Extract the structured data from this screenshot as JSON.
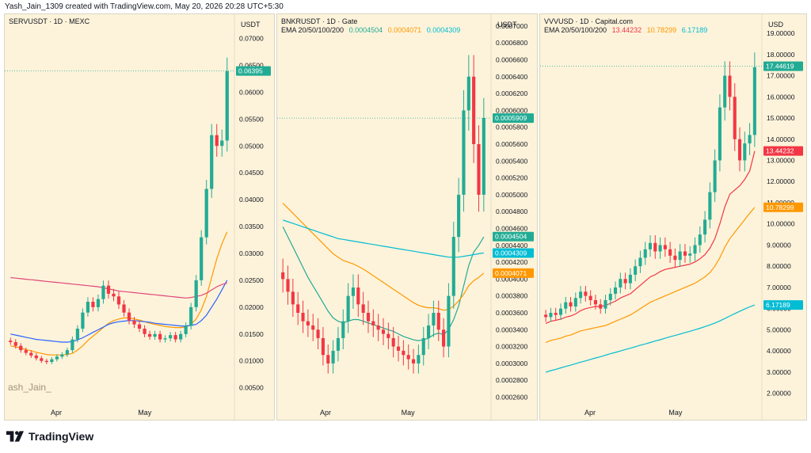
{
  "header": {
    "text": "Yash_Jain_1309 created with TradingView.com, May 20, 2026 20:28 UTC+5:30"
  },
  "footer": {
    "brand": "TradingView",
    "logo_icon": "tradingview-logo-icon"
  },
  "colors": {
    "background": "#fdf3da",
    "up": "#22ab94",
    "down": "#f23645",
    "ema20": "#f23645",
    "ema50": "#ff9800",
    "ema100": "#2962ff",
    "ema200": "#00bcd4",
    "text": "#131722"
  },
  "panels": [
    {
      "title": "SERVUSDT · 1D · MEXC",
      "ema_label": "",
      "currency": "USDT",
      "watermark": "ash_Jain_",
      "x_labels": [
        "Apr",
        "May"
      ],
      "chart_data": {
        "type": "candlestick",
        "ylim": [
          0.002,
          0.0745
        ],
        "y_ticks": [
          "0.07000",
          "0.06500",
          "0.06000",
          "0.05500",
          "0.05000",
          "0.04500",
          "0.04000",
          "0.03500",
          "0.03000",
          "0.02500",
          "0.02000",
          "0.01500",
          "0.01000",
          "0.00500"
        ],
        "price_labels": [
          {
            "text": "0.06395",
            "value": 0.06395,
            "color": "#22ab94"
          }
        ],
        "last_price": 0.06395,
        "close": [
          0.0135,
          0.0128,
          0.012,
          0.0115,
          0.011,
          0.0105,
          0.01,
          0.0098,
          0.0103,
          0.0108,
          0.0112,
          0.012,
          0.014,
          0.016,
          0.019,
          0.021,
          0.02,
          0.0215,
          0.024,
          0.0225,
          0.022,
          0.0205,
          0.019,
          0.0175,
          0.0168,
          0.016,
          0.015,
          0.0145,
          0.015,
          0.014,
          0.0142,
          0.0148,
          0.014,
          0.015,
          0.0165,
          0.02,
          0.025,
          0.033,
          0.042,
          0.052,
          0.05,
          0.051,
          0.0639
        ],
        "series": [
          {
            "name": "EMA 20",
            "color": "#ff9800",
            "values": [
              0.0128,
              0.0126,
              0.0124,
              0.0121,
              0.0119,
              0.0116,
              0.0114,
              0.0112,
              0.0111,
              0.0111,
              0.0111,
              0.0112,
              0.0114,
              0.012,
              0.0128,
              0.0138,
              0.0146,
              0.0154,
              0.0162,
              0.017,
              0.0175,
              0.0178,
              0.018,
              0.018,
              0.0178,
              0.0176,
              0.0173,
              0.017,
              0.0168,
              0.0166,
              0.0164,
              0.0163,
              0.0162,
              0.0162,
              0.0163,
              0.0168,
              0.0178,
              0.0195,
              0.022,
              0.0255,
              0.029,
              0.0318,
              0.034
            ]
          },
          {
            "name": "EMA 100",
            "color": "#2962ff",
            "values": [
              0.015,
              0.0148,
              0.0146,
              0.0144,
              0.0142,
              0.014,
              0.0139,
              0.0138,
              0.0137,
              0.0136,
              0.0135,
              0.0135,
              0.0136,
              0.0139,
              0.0143,
              0.0148,
              0.0153,
              0.0158,
              0.0163,
              0.0168,
              0.0171,
              0.0173,
              0.0174,
              0.0175,
              0.0175,
              0.0174,
              0.0173,
              0.0172,
              0.017,
              0.0169,
              0.0168,
              0.0167,
              0.0166,
              0.0165,
              0.0165,
              0.0166,
              0.0168,
              0.0175,
              0.0185,
              0.02,
              0.0215,
              0.0232,
              0.025
            ]
          },
          {
            "name": "EMA 200",
            "color": "#e0487a",
            "values": [
              0.0255,
              0.0254,
              0.0253,
              0.0252,
              0.0251,
              0.025,
              0.0249,
              0.0248,
              0.0247,
              0.0246,
              0.0245,
              0.0244,
              0.0243,
              0.0242,
              0.0241,
              0.024,
              0.0239,
              0.0238,
              0.0236,
              0.0234,
              0.0232,
              0.023,
              0.0229,
              0.0228,
              0.0227,
              0.0226,
              0.0225,
              0.0224,
              0.0223,
              0.0222,
              0.0221,
              0.022,
              0.0219,
              0.0218,
              0.0217,
              0.0218,
              0.022,
              0.0222,
              0.0226,
              0.0232,
              0.0238,
              0.0242,
              0.0245
            ]
          }
        ]
      }
    },
    {
      "title": "BNKRUSDT · 1D · Gate",
      "ema_label": "EMA 20/50/100/200",
      "ema_values": [
        {
          "text": "0.0004504",
          "color": "#22ab94"
        },
        {
          "text": "0.0004071",
          "color": "#ff9800"
        },
        {
          "text": "0.0004309",
          "color": "#00bcd4"
        }
      ],
      "currency": "USDT",
      "watermark": "",
      "x_labels": [
        "Apr",
        "May"
      ],
      "chart_data": {
        "type": "candlestick",
        "ylim": [
          0.000252,
          0.000714
        ],
        "y_ticks": [
          "0.0007000",
          "0.0006800",
          "0.0006600",
          "0.0006400",
          "0.0006200",
          "0.0006000",
          "0.0005800",
          "0.0005600",
          "0.0005400",
          "0.0005200",
          "0.0005000",
          "0.0004800",
          "0.0004600",
          "0.0004400",
          "0.0004200",
          "0.0004000",
          "0.0003800",
          "0.0003600",
          "0.0003400",
          "0.0003200",
          "0.0003000",
          "0.0002800",
          "0.0002600"
        ],
        "price_labels": [
          {
            "text": "0.0005909",
            "value": 0.0005909,
            "color": "#22ab94"
          },
          {
            "text": "0.0004504",
            "value": 0.0004504,
            "color": "#22ab94"
          },
          {
            "text": "0.0004309",
            "value": 0.0004309,
            "color": "#00bcd4"
          },
          {
            "text": "0.0004071",
            "value": 0.0004071,
            "color": "#ff9800"
          }
        ],
        "last_price": 0.0005909,
        "close": [
          0.0004,
          0.000385,
          0.00037,
          0.00036,
          0.00035,
          0.000345,
          0.00034,
          0.00033,
          0.00031,
          0.0003,
          0.000315,
          0.00033,
          0.00035,
          0.00038,
          0.00039,
          0.00037,
          0.00036,
          0.00035,
          0.000345,
          0.00034,
          0.000335,
          0.00033,
          0.00032,
          0.000315,
          0.00031,
          0.000305,
          0.0003,
          0.00031,
          0.00033,
          0.000345,
          0.00036,
          0.00034,
          0.00032,
          0.00038,
          0.00045,
          0.0005,
          0.0006,
          0.00064,
          0.00056,
          0.0005,
          0.000591
        ],
        "series": [
          {
            "name": "EMA 20",
            "color": "#22ab94",
            "values": [
              0.000462,
              0.00045,
              0.000438,
              0.000426,
              0.000414,
              0.000402,
              0.000392,
              0.000382,
              0.000372,
              0.000362,
              0.000354,
              0.00035,
              0.000348,
              0.00035,
              0.000352,
              0.000352,
              0.00035,
              0.000348,
              0.000346,
              0.000344,
              0.000342,
              0.00034,
              0.000338,
              0.000335,
              0.000332,
              0.00033,
              0.000328,
              0.000327,
              0.000328,
              0.00033,
              0.000334,
              0.000336,
              0.000334,
              0.00034,
              0.000352,
              0.000368,
              0.000392,
              0.000416,
              0.000432,
              0.00044,
              0.00045
            ]
          },
          {
            "name": "EMA 50",
            "color": "#ff9800",
            "values": [
              0.00049,
              0.000484,
              0.000478,
              0.000472,
              0.000466,
              0.00046,
              0.000454,
              0.000448,
              0.000442,
              0.000436,
              0.00043,
              0.000426,
              0.000422,
              0.00042,
              0.000418,
              0.000415,
              0.000412,
              0.000408,
              0.000404,
              0.0004,
              0.000396,
              0.000392,
              0.000388,
              0.000384,
              0.00038,
              0.000376,
              0.000372,
              0.000369,
              0.000367,
              0.000366,
              0.000366,
              0.000365,
              0.000363,
              0.000364,
              0.000368,
              0.000374,
              0.000382,
              0.000392,
              0.000398,
              0.000402,
              0.000407
            ]
          },
          {
            "name": "EMA 100",
            "color": "#00bcd4",
            "values": [
              0.00047,
              0.000468,
              0.000466,
              0.000464,
              0.000462,
              0.00046,
              0.000458,
              0.000456,
              0.000454,
              0.000452,
              0.00045,
              0.000448,
              0.000447,
              0.000446,
              0.000445,
              0.000444,
              0.000443,
              0.000442,
              0.000441,
              0.00044,
              0.000439,
              0.000438,
              0.000437,
              0.000436,
              0.000435,
              0.000434,
              0.000433,
              0.000432,
              0.000431,
              0.00043,
              0.000429,
              0.000428,
              0.000427,
              0.000426,
              0.000426,
              0.000426,
              0.000427,
              0.000428,
              0.000429,
              0.00043,
              0.000431
            ]
          }
        ]
      }
    },
    {
      "title": "VVVUSD · 1D · Capital.com",
      "ema_label": "EMA 20/50/100/200",
      "ema_values": [
        {
          "text": "13.44232",
          "color": "#f23645"
        },
        {
          "text": "10.78299",
          "color": "#ff9800"
        },
        {
          "text": "6.17189",
          "color": "#00bcd4"
        }
      ],
      "currency": "USD",
      "watermark": "",
      "x_labels": [
        "Apr",
        "May"
      ],
      "chart_data": {
        "type": "candlestick",
        "ylim": [
          1.5,
          19.9
        ],
        "y_ticks": [
          "19.00000",
          "18.00000",
          "17.00000",
          "16.00000",
          "15.00000",
          "14.00000",
          "13.00000",
          "12.00000",
          "11.00000",
          "10.00000",
          "9.00000",
          "8.00000",
          "7.00000",
          "6.00000",
          "5.00000",
          "4.00000",
          "3.00000",
          "2.00000"
        ],
        "price_labels": [
          {
            "text": "17.44619",
            "value": 17.44619,
            "color": "#22ab94"
          },
          {
            "text": "13.44232",
            "value": 13.44232,
            "color": "#f23645"
          },
          {
            "text": "10.78299",
            "value": 10.78299,
            "color": "#ff9800"
          },
          {
            "text": "6.17189",
            "value": 6.17189,
            "color": "#00bcd4"
          }
        ],
        "last_price": 17.44619,
        "close": [
          5.6,
          5.8,
          5.7,
          6.0,
          6.3,
          6.1,
          6.5,
          6.8,
          6.6,
          6.4,
          6.2,
          6.0,
          6.4,
          6.7,
          7.0,
          7.4,
          7.2,
          7.6,
          8.0,
          8.4,
          8.8,
          9.1,
          8.7,
          9.0,
          8.8,
          8.5,
          8.3,
          8.7,
          8.5,
          8.6,
          9.0,
          9.5,
          10.2,
          11.5,
          13.0,
          15.5,
          17.0,
          16.0,
          14.0,
          13.0,
          13.8,
          14.2,
          17.4
        ],
        "series": [
          {
            "name": "EMA 20",
            "color": "#f23645",
            "values": [
              5.3,
              5.4,
              5.45,
              5.5,
              5.6,
              5.65,
              5.75,
              5.9,
              6.0,
              6.05,
              6.1,
              6.1,
              6.15,
              6.25,
              6.35,
              6.5,
              6.6,
              6.7,
              6.9,
              7.1,
              7.3,
              7.5,
              7.6,
              7.75,
              7.85,
              7.9,
              7.95,
              8.0,
              8.05,
              8.1,
              8.2,
              8.35,
              8.55,
              8.85,
              9.3,
              10.0,
              10.8,
              11.4,
              11.6,
              11.8,
              12.1,
              12.5,
              13.44
            ]
          },
          {
            "name": "EMA 50",
            "color": "#ff9800",
            "values": [
              4.4,
              4.5,
              4.55,
              4.6,
              4.7,
              4.75,
              4.85,
              4.95,
              5.0,
              5.05,
              5.1,
              5.15,
              5.2,
              5.3,
              5.4,
              5.5,
              5.6,
              5.7,
              5.85,
              6.0,
              6.15,
              6.3,
              6.4,
              6.5,
              6.6,
              6.7,
              6.8,
              6.9,
              7.0,
              7.1,
              7.2,
              7.35,
              7.5,
              7.7,
              8.0,
              8.4,
              8.9,
              9.3,
              9.6,
              9.9,
              10.2,
              10.5,
              10.78
            ]
          },
          {
            "name": "EMA 200",
            "color": "#00bcd4",
            "values": [
              3.0,
              3.07,
              3.13,
              3.2,
              3.27,
              3.33,
              3.4,
              3.47,
              3.53,
              3.6,
              3.67,
              3.73,
              3.8,
              3.87,
              3.93,
              4.0,
              4.07,
              4.13,
              4.2,
              4.27,
              4.33,
              4.4,
              4.47,
              4.53,
              4.6,
              4.67,
              4.73,
              4.8,
              4.87,
              4.93,
              5.0,
              5.07,
              5.15,
              5.23,
              5.32,
              5.42,
              5.53,
              5.65,
              5.76,
              5.87,
              5.98,
              6.08,
              6.17
            ]
          }
        ]
      }
    }
  ]
}
